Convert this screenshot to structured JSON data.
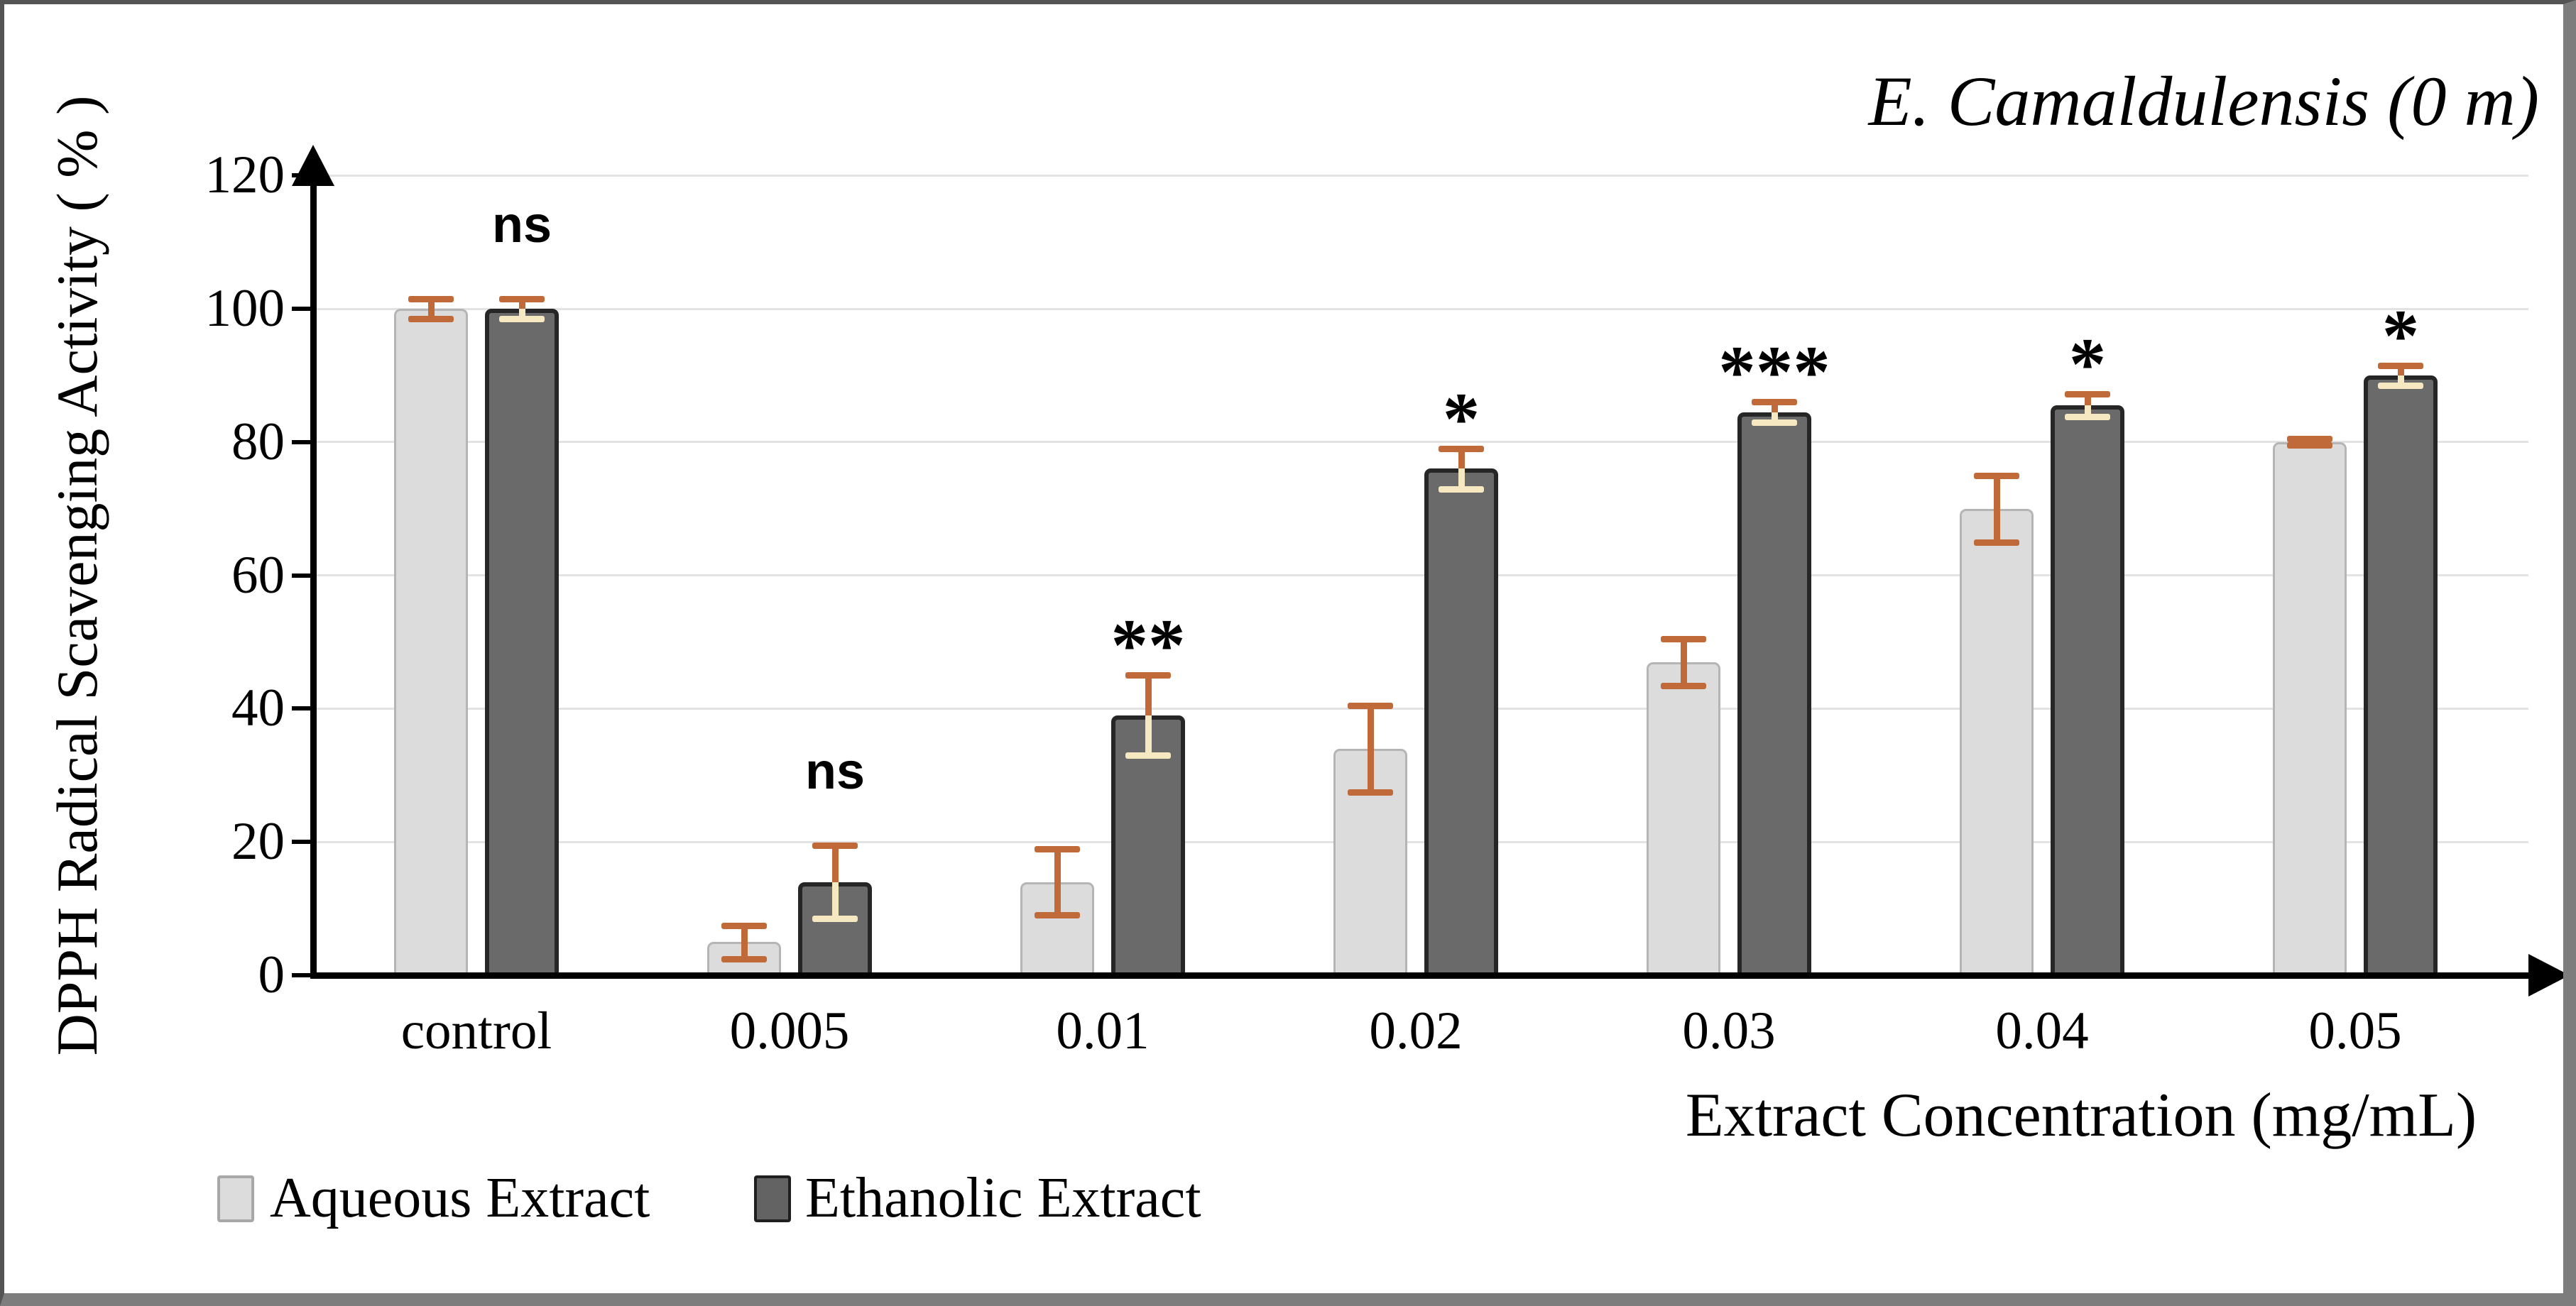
{
  "figure": {
    "title": "E. Camaldulensis (0 m)"
  },
  "legend": {
    "items": [
      {
        "label": "Aqueous Extract",
        "swatch_color": "#dcdcdc",
        "swatch_border": "#a8a8a8"
      },
      {
        "label": "Ethanolic Extract",
        "swatch_color": "#636363",
        "swatch_border": "#1f1f1f"
      }
    ]
  },
  "chart_data": {
    "type": "bar",
    "title": "E. Camaldulensis (0 m)",
    "xlabel": "Extract Concentration (mg/mL)",
    "ylabel": "DPPH Radical Scavenging Activity ( % )",
    "categories": [
      "control",
      "0.005",
      "0.01",
      "0.02",
      "0.03",
      "0.04",
      "0.05"
    ],
    "series": [
      {
        "name": "Aqueous Extract",
        "color": "#dcdcdc",
        "border_color": "#b5b5b5",
        "values": [
          100,
          5,
          14,
          34,
          47,
          70,
          80
        ],
        "errors": [
          1.5,
          2.5,
          5,
          6.5,
          3.5,
          5,
          0.5
        ]
      },
      {
        "name": "Ethanolic Extract",
        "color": "#6a6a6a",
        "border_color": "#262626",
        "values": [
          100,
          14,
          39,
          76,
          84.5,
          85.5,
          90
        ],
        "errors": [
          1.5,
          5.5,
          6,
          3,
          1.5,
          1.7,
          1.5
        ]
      }
    ],
    "significance_labels": [
      "ns",
      "ns",
      "**",
      "*",
      "***",
      "*",
      "*"
    ],
    "yticks": [
      0,
      20,
      40,
      60,
      80,
      100,
      120
    ],
    "ylim": [
      0,
      120
    ],
    "grid": true,
    "legend_position": "bottom-left",
    "error_bar_color": "#bf6a38",
    "error_bar_inner_color": "#f6e9c1",
    "gridline_color": "#e3e3e3",
    "axis_color": "#000000"
  }
}
